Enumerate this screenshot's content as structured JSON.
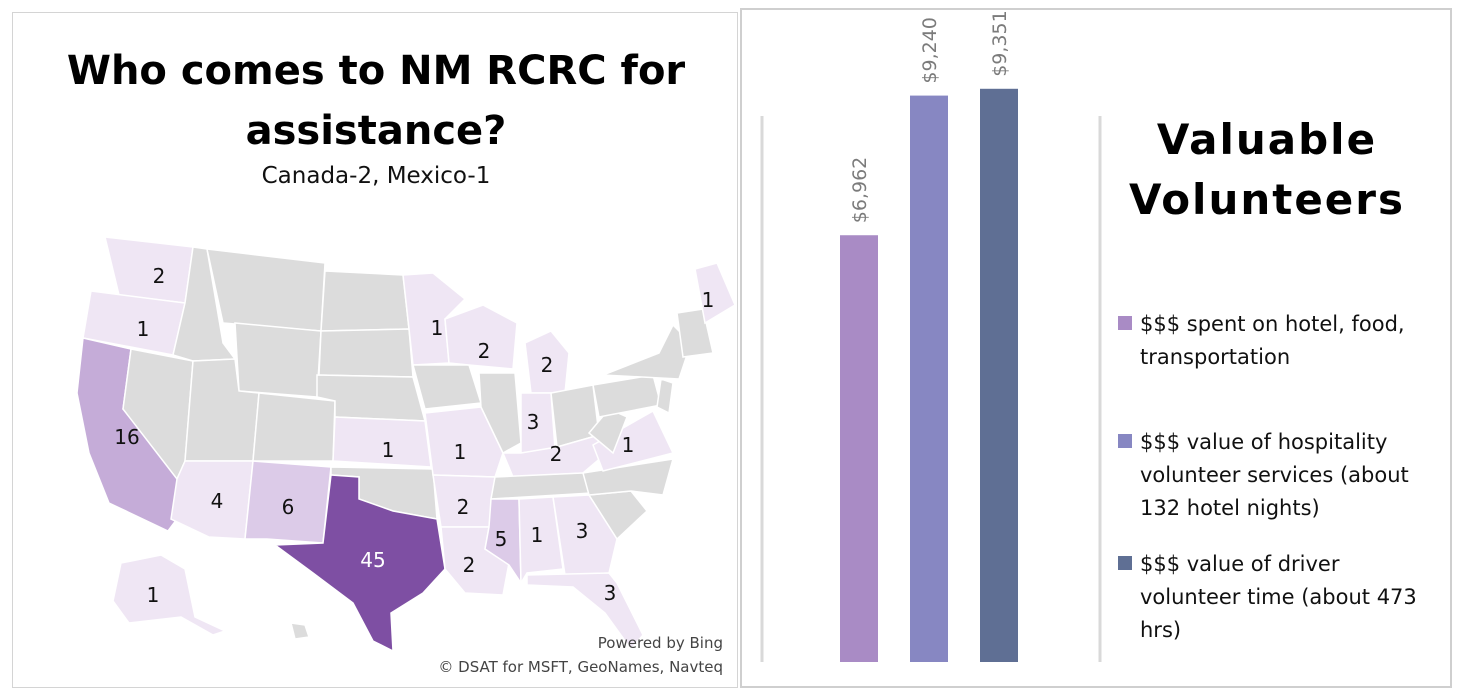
{
  "map_panel": {
    "title": "Who comes to NM RCRC for assistance?",
    "subtitle": "Canada-2, Mexico-1",
    "credit_line1": "Powered by Bing",
    "credit_line2": "© DSAT for MSFT, GeoNames, Navteq",
    "colors": {
      "none": "#dcdcdc",
      "low": "#efe6f4",
      "mid": "#dccbe8",
      "high": "#c5acd8",
      "max": "#7e4fa3"
    },
    "state_counts": [
      {
        "state": "WA",
        "value": "2"
      },
      {
        "state": "OR",
        "value": "1"
      },
      {
        "state": "CA",
        "value": "16"
      },
      {
        "state": "AZ",
        "value": "4"
      },
      {
        "state": "NM",
        "value": "6"
      },
      {
        "state": "TX",
        "value": "45"
      },
      {
        "state": "KS",
        "value": "1"
      },
      {
        "state": "MO",
        "value": "1"
      },
      {
        "state": "AR",
        "value": "2"
      },
      {
        "state": "LA",
        "value": "2"
      },
      {
        "state": "MS",
        "value": "5"
      },
      {
        "state": "AL",
        "value": "1"
      },
      {
        "state": "GA",
        "value": "3"
      },
      {
        "state": "FL",
        "value": "3"
      },
      {
        "state": "MN",
        "value": "1"
      },
      {
        "state": "WI",
        "value": "2"
      },
      {
        "state": "MI",
        "value": "2"
      },
      {
        "state": "IN",
        "value": "3"
      },
      {
        "state": "KY",
        "value": "2"
      },
      {
        "state": "VA",
        "value": "1"
      },
      {
        "state": "ME",
        "value": "1"
      },
      {
        "state": "AK",
        "value": "1"
      }
    ]
  },
  "chart_panel": {
    "title": "Valuable Volunteers",
    "chart_data": {
      "type": "bar",
      "categories": [
        "$$$ spent on hotel, food, transportation",
        "$$$ value of hospitality volunteer services (about 132 hotel nights)",
        "$$$ value of driver volunteer time (about 473 hrs)"
      ],
      "values": [
        6962,
        9240,
        9351
      ],
      "data_labels": [
        "$6,962",
        "$9,240",
        "$9,351"
      ],
      "colors": [
        "#a98bc5",
        "#8787c2",
        "#5f6f94"
      ],
      "ylim": [
        0,
        10000
      ],
      "legend_position": "right",
      "grid": false
    }
  }
}
